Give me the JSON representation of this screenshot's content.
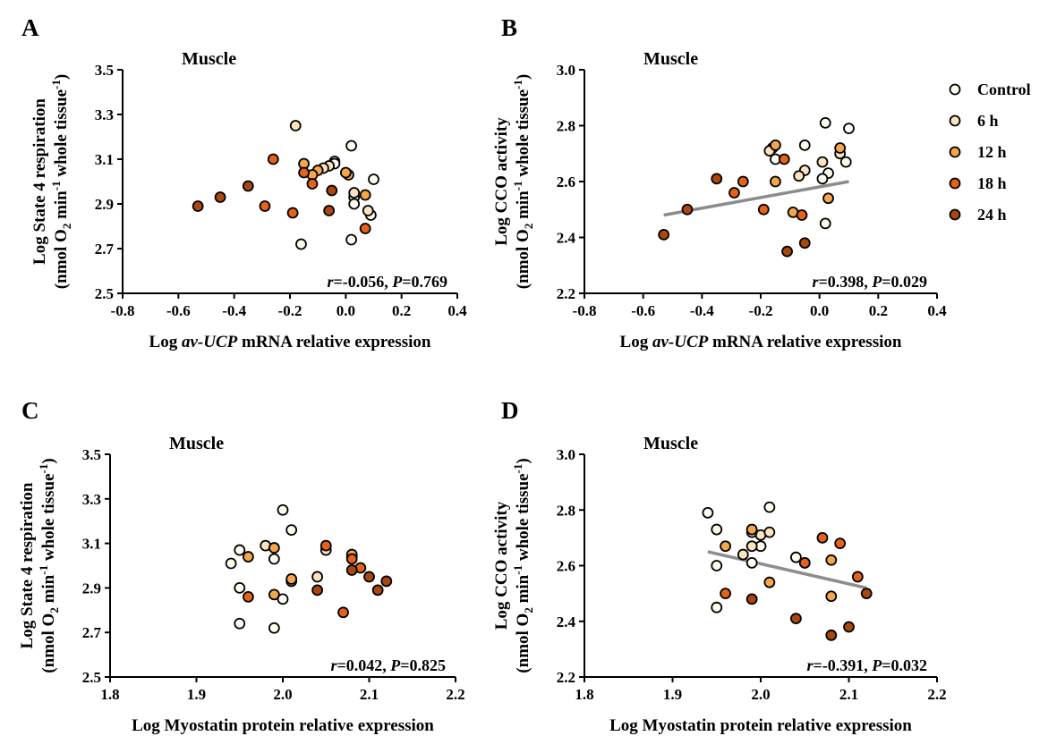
{
  "legend": {
    "items": [
      {
        "label": "Control",
        "color": "#fffdf0"
      },
      {
        "label": "6 h",
        "color": "#fbe3c0"
      },
      {
        "label": "12 h",
        "color": "#f3a64a"
      },
      {
        "label": "18 h",
        "color": "#e4621a"
      },
      {
        "label": "24 h",
        "color": "#a8470f"
      }
    ]
  },
  "chart_data": [
    {
      "panel": "A",
      "type": "scatter",
      "title": "Muscle",
      "xlabel": {
        "pre": "Log ",
        "italic": "av-UCP",
        "post": " mRNA relative expression"
      },
      "ylabel": {
        "line1": "Log State 4 respiration",
        "line2": {
          "pre": "(nmol O",
          "sub1": "2",
          "mid": " min",
          "sup1": "-1",
          "post": " whole tissue",
          "sup2": "-1",
          "end": ")"
        }
      },
      "xlim": [
        -0.8,
        0.4
      ],
      "ylim": [
        2.5,
        3.5
      ],
      "xticks": [
        "-0.8",
        "-0.6",
        "-0.4",
        "-0.2",
        "0.0",
        "0.2",
        "0.4"
      ],
      "yticks": [
        "2.5",
        "2.7",
        "2.9",
        "3.1",
        "3.3",
        "3.5"
      ],
      "stats": {
        "r_label": "r",
        "r_value": "=-0.056, ",
        "p_label": "P",
        "p_value": "=0.769"
      },
      "fit_line": null,
      "series": [
        {
          "name": "Control",
          "points": [
            [
              -0.04,
              3.09
            ],
            [
              0.02,
              3.16
            ],
            [
              0.1,
              3.01
            ],
            [
              0.03,
              2.93
            ],
            [
              0.03,
              2.9
            ],
            [
              0.02,
              2.74
            ],
            [
              -0.16,
              2.72
            ],
            [
              0.09,
              2.85
            ],
            [
              -0.04,
              3.08
            ]
          ]
        },
        {
          "name": "6 h",
          "points": [
            [
              -0.18,
              3.25
            ],
            [
              -0.06,
              3.07
            ],
            [
              0.08,
              2.87
            ],
            [
              0.03,
              2.95
            ],
            [
              -0.08,
              3.06
            ]
          ]
        },
        {
          "name": "12 h",
          "points": [
            [
              -0.15,
              3.08
            ],
            [
              -0.1,
              3.05
            ],
            [
              0.01,
              3.03
            ],
            [
              -0.12,
              3.03
            ],
            [
              0.07,
              2.94
            ],
            [
              0.0,
              3.04
            ]
          ]
        },
        {
          "name": "18 h",
          "points": [
            [
              -0.26,
              3.1
            ],
            [
              -0.15,
              3.04
            ],
            [
              -0.12,
              2.99
            ],
            [
              -0.29,
              2.89
            ],
            [
              -0.19,
              2.86
            ],
            [
              0.07,
              2.79
            ]
          ]
        },
        {
          "name": "24 h",
          "points": [
            [
              -0.53,
              2.89
            ],
            [
              -0.45,
              2.93
            ],
            [
              -0.35,
              2.98
            ],
            [
              -0.05,
              2.96
            ],
            [
              -0.06,
              2.87
            ]
          ]
        }
      ]
    },
    {
      "panel": "B",
      "type": "scatter",
      "title": "Muscle",
      "xlabel": {
        "pre": "Log ",
        "italic": "av-UCP",
        "post": " mRNA relative expression"
      },
      "ylabel": {
        "line1": "Log CCO activity",
        "line2": {
          "pre": "(nmol O",
          "sub1": "2",
          "mid": " min",
          "sup1": "-1",
          "post": " whole tissue",
          "sup2": "-1",
          "end": ")"
        }
      },
      "xlim": [
        -0.8,
        0.4
      ],
      "ylim": [
        2.2,
        3.0
      ],
      "xticks": [
        "-0.8",
        "-0.6",
        "-0.4",
        "-0.2",
        "0.0",
        "0.2",
        "0.4"
      ],
      "yticks": [
        "2.2",
        "2.4",
        "2.6",
        "2.8",
        "3.0"
      ],
      "stats": {
        "r_label": "r",
        "r_value": "=0.398, ",
        "p_label": "P",
        "p_value": "=0.029"
      },
      "fit_line": {
        "x": [
          -0.53,
          0.1
        ],
        "y": [
          2.48,
          2.6
        ],
        "color": "#8c8c8c"
      },
      "series": [
        {
          "name": "Control",
          "points": [
            [
              0.02,
              2.81
            ],
            [
              0.1,
              2.79
            ],
            [
              -0.05,
              2.73
            ],
            [
              0.09,
              2.67
            ],
            [
              0.03,
              2.63
            ],
            [
              0.01,
              2.61
            ],
            [
              0.02,
              2.45
            ],
            [
              -0.15,
              2.68
            ],
            [
              -0.16,
              2.72
            ]
          ]
        },
        {
          "name": "6 h",
          "points": [
            [
              -0.17,
              2.71
            ],
            [
              -0.05,
              2.64
            ],
            [
              -0.07,
              2.62
            ],
            [
              0.01,
              2.67
            ],
            [
              0.07,
              2.7
            ]
          ]
        },
        {
          "name": "12 h",
          "points": [
            [
              -0.15,
              2.73
            ],
            [
              0.07,
              2.72
            ],
            [
              0.03,
              2.54
            ],
            [
              -0.09,
              2.49
            ],
            [
              -0.15,
              2.6
            ]
          ]
        },
        {
          "name": "18 h",
          "points": [
            [
              -0.26,
              2.6
            ],
            [
              -0.29,
              2.56
            ],
            [
              -0.19,
              2.5
            ],
            [
              -0.12,
              2.68
            ],
            [
              -0.06,
              2.48
            ]
          ]
        },
        {
          "name": "24 h",
          "points": [
            [
              -0.53,
              2.41
            ],
            [
              -0.45,
              2.5
            ],
            [
              -0.35,
              2.61
            ],
            [
              -0.11,
              2.35
            ],
            [
              -0.05,
              2.38
            ]
          ]
        }
      ]
    },
    {
      "panel": "C",
      "type": "scatter",
      "title": "Muscle",
      "xlabel": {
        "pre": "Log Myostatin protein relative expression",
        "italic": "",
        "post": ""
      },
      "ylabel": {
        "line1": "Log State 4 respiration",
        "line2": {
          "pre": "(nmol O",
          "sub1": "2",
          "mid": " min",
          "sup1": "-1",
          "post": " whole tissue",
          "sup2": "-1",
          "end": ")"
        }
      },
      "xlim": [
        1.8,
        2.2
      ],
      "ylim": [
        2.5,
        3.5
      ],
      "xticks": [
        "1.8",
        "1.9",
        "2.0",
        "2.1",
        "2.2"
      ],
      "yticks": [
        "2.5",
        "2.7",
        "2.9",
        "3.1",
        "3.3",
        "3.5"
      ],
      "stats": {
        "r_label": "r",
        "r_value": "=0.042, ",
        "p_label": "P",
        "p_value": "=0.825"
      },
      "fit_line": null,
      "series": [
        {
          "name": "Control",
          "points": [
            [
              1.94,
              3.01
            ],
            [
              1.95,
              3.07
            ],
            [
              1.95,
              2.9
            ],
            [
              1.95,
              2.74
            ],
            [
              1.99,
              2.72
            ],
            [
              2.0,
              2.85
            ],
            [
              2.01,
              3.16
            ],
            [
              1.99,
              3.03
            ],
            [
              2.0,
              3.25
            ]
          ]
        },
        {
          "name": "6 h",
          "points": [
            [
              1.98,
              3.09
            ],
            [
              2.05,
              3.07
            ],
            [
              2.04,
              2.95
            ],
            [
              2.01,
              2.93
            ],
            [
              2.08,
              3.04
            ]
          ]
        },
        {
          "name": "12 h",
          "points": [
            [
              1.96,
              3.04
            ],
            [
              1.99,
              3.08
            ],
            [
              2.01,
              2.94
            ],
            [
              1.99,
              2.87
            ],
            [
              2.08,
              3.05
            ]
          ]
        },
        {
          "name": "18 h",
          "points": [
            [
              1.96,
              2.86
            ],
            [
              2.05,
              3.09
            ],
            [
              2.07,
              2.79
            ],
            [
              2.08,
              3.03
            ],
            [
              2.09,
              2.99
            ]
          ]
        },
        {
          "name": "24 h",
          "points": [
            [
              2.04,
              2.89
            ],
            [
              2.08,
              2.98
            ],
            [
              2.1,
              2.95
            ],
            [
              2.11,
              2.89
            ],
            [
              2.12,
              2.93
            ]
          ]
        }
      ]
    },
    {
      "panel": "D",
      "type": "scatter",
      "title": "Muscle",
      "xlabel": {
        "pre": "Log Myostatin protein relative expression",
        "italic": "",
        "post": ""
      },
      "ylabel": {
        "line1": "Log CCO activity",
        "line2": {
          "pre": "(nmol O",
          "sub1": "2",
          "mid": " min",
          "sup1": "-1",
          "post": " whole tissue",
          "sup2": "-1",
          "end": ")"
        }
      },
      "xlim": [
        1.8,
        2.2
      ],
      "ylim": [
        2.2,
        3.0
      ],
      "xticks": [
        "1.8",
        "1.9",
        "2.0",
        "2.1",
        "2.2"
      ],
      "yticks": [
        "2.2",
        "2.4",
        "2.6",
        "2.8",
        "3.0"
      ],
      "stats": {
        "r_label": "r",
        "r_value": "=-0.391, ",
        "p_label": "P",
        "p_value": "=0.032"
      },
      "fit_line": {
        "x": [
          1.94,
          2.12
        ],
        "y": [
          2.65,
          2.52
        ],
        "color": "#8c8c8c"
      },
      "series": [
        {
          "name": "Control",
          "points": [
            [
              1.94,
              2.79
            ],
            [
              1.95,
              2.73
            ],
            [
              1.95,
              2.6
            ],
            [
              1.95,
              2.45
            ],
            [
              1.99,
              2.61
            ],
            [
              2.0,
              2.67
            ],
            [
              2.01,
              2.81
            ],
            [
              2.05,
              2.61
            ],
            [
              2.04,
              2.63
            ]
          ]
        },
        {
          "name": "6 h",
          "points": [
            [
              1.98,
              2.64
            ],
            [
              1.99,
              2.67
            ],
            [
              2.0,
              2.71
            ],
            [
              1.99,
              2.72
            ],
            [
              2.01,
              2.72
            ]
          ]
        },
        {
          "name": "12 h",
          "points": [
            [
              1.96,
              2.67
            ],
            [
              1.99,
              2.73
            ],
            [
              2.01,
              2.54
            ],
            [
              2.08,
              2.49
            ],
            [
              2.08,
              2.62
            ]
          ]
        },
        {
          "name": "18 h",
          "points": [
            [
              1.96,
              2.5
            ],
            [
              2.05,
              2.61
            ],
            [
              2.07,
              2.7
            ],
            [
              2.09,
              2.68
            ],
            [
              2.11,
              2.56
            ]
          ]
        },
        {
          "name": "24 h",
          "points": [
            [
              1.99,
              2.48
            ],
            [
              2.04,
              2.41
            ],
            [
              2.08,
              2.35
            ],
            [
              2.1,
              2.38
            ],
            [
              2.12,
              2.5
            ]
          ]
        }
      ]
    }
  ]
}
